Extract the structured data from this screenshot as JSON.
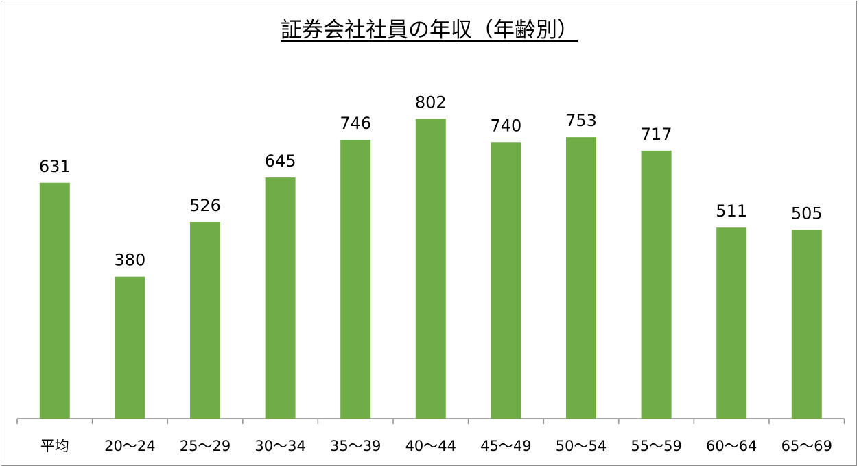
{
  "chart_data": {
    "type": "bar",
    "title": "証券会社社員の年収（年齢別）",
    "categories": [
      "平均",
      "20〜24",
      "25〜29",
      "30〜34",
      "35〜39",
      "40〜44",
      "45〜49",
      "50〜54",
      "55〜59",
      "60〜64",
      "65〜69"
    ],
    "values": [
      631,
      380,
      526,
      645,
      746,
      802,
      740,
      753,
      717,
      511,
      505
    ],
    "xlabel": "",
    "ylabel": "",
    "ylim": [
      0,
      900
    ],
    "grid": false,
    "data_labels": true,
    "legend": "none",
    "bar_color": "#70ad47"
  }
}
